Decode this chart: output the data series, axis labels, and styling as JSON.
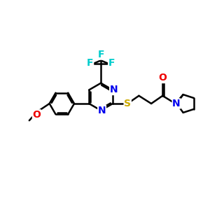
{
  "background_color": "#ffffff",
  "atom_colors": {
    "C": "#000000",
    "N": "#0000ee",
    "O": "#ee0000",
    "S": "#ccaa00",
    "F": "#00cccc",
    "H": "#000000"
  },
  "bond_color": "#000000",
  "bond_width": 1.8,
  "fig_width": 3.0,
  "fig_height": 3.0,
  "dpi": 100
}
